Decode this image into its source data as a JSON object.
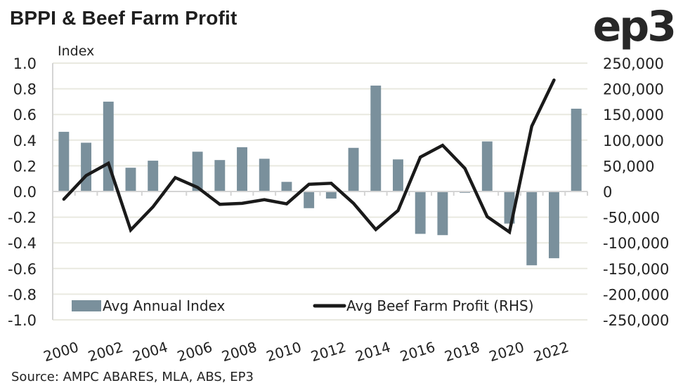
{
  "header": {
    "title": "BPPI & Beef Farm Profit",
    "logo": "ep3"
  },
  "footer": {
    "source": "Source: AMPC ABARES, MLA, ABS, EP3"
  },
  "colors": {
    "bar": "#7a909c",
    "line": "#1a1a1a",
    "grid": "#e9e9e0",
    "axis": "#d4d4d4"
  },
  "chart_data": {
    "type": "bar",
    "combo": "bar+line (dual axis)",
    "title": "BPPI & Beef Farm Profit",
    "ylabel": "Index",
    "y2label": "",
    "ylim": [
      -1.0,
      1.0
    ],
    "y2lim": [
      -250000,
      250000
    ],
    "yticks": [
      "1.0",
      "0.8",
      "0.6",
      "0.4",
      "0.2",
      "0.0",
      "-0.2",
      "-0.4",
      "-0.6",
      "-0.8",
      "-1.0"
    ],
    "y2ticks": [
      "250,000",
      "200,000",
      "150,000",
      "100,000",
      "50,000",
      "0",
      "-50,000",
      "-100,000",
      "-150,000",
      "-200,000",
      "-250,000"
    ],
    "xticks": [
      "2000",
      "2002",
      "2004",
      "2006",
      "2008",
      "2010",
      "2012",
      "2014",
      "2016",
      "2018",
      "2020",
      "2022"
    ],
    "grid": true,
    "legend_position": "bottom-inside",
    "categories": [
      "2000",
      "2001",
      "2002",
      "2003",
      "2004",
      "2005",
      "2006",
      "2007",
      "2008",
      "2009",
      "2010",
      "2011",
      "2012",
      "2013",
      "2014",
      "2015",
      "2016",
      "2017",
      "2018",
      "2019",
      "2020",
      "2021",
      "2022",
      "2023"
    ],
    "series": [
      {
        "name": "Avg Annual Index",
        "type": "bar",
        "axis": "left",
        "values": [
          0.465,
          0.38,
          0.7,
          0.185,
          0.24,
          0.005,
          0.31,
          0.245,
          0.345,
          0.255,
          0.075,
          -0.13,
          -0.055,
          0.34,
          0.825,
          0.25,
          -0.33,
          -0.34,
          -0.01,
          0.39,
          -0.25,
          -0.575,
          -0.52,
          0.645
        ]
      },
      {
        "name": "Avg Beef Farm Profit (RHS)",
        "type": "line",
        "axis": "right",
        "values": [
          -15000,
          31000,
          55000,
          -75000,
          -30000,
          27000,
          8000,
          -25000,
          -23000,
          -16000,
          -24000,
          14000,
          16000,
          -23000,
          -74000,
          -37000,
          67000,
          90000,
          45000,
          -49000,
          -79000,
          127000,
          217000,
          null
        ]
      }
    ]
  }
}
